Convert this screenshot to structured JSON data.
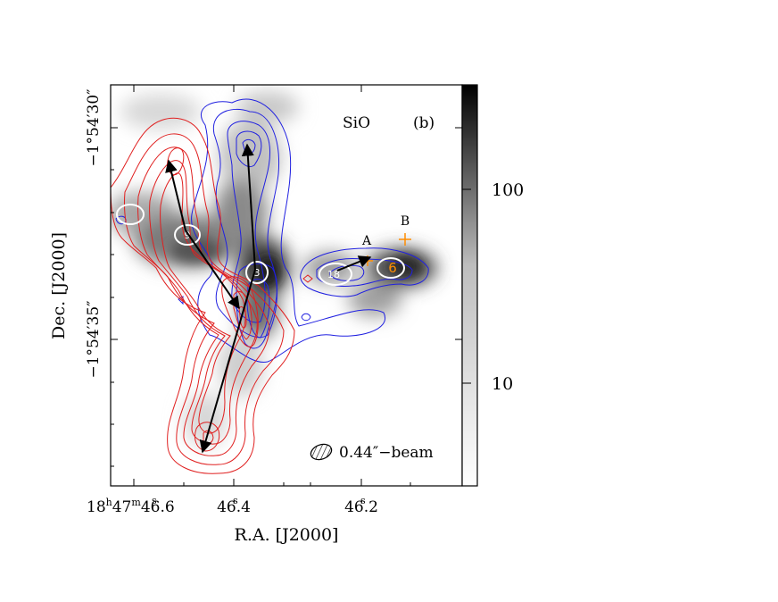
{
  "chart_data": {
    "type": "heatmap",
    "panel_label": "(b)",
    "species_label": "SiO",
    "xlabel": "R.A. [J2000]",
    "ylabel": "Dec. [J2000]",
    "x_ticks": [
      {
        "label_main": "18",
        "sup_h": "h",
        "label_min": "47",
        "sup_m": "m",
        "label_sec": "46.6",
        "sup_s": "s",
        "value": 46.6
      },
      {
        "label_sec": "46.4",
        "sup_s": "s",
        "value": 46.4
      },
      {
        "label_sec": "46.2",
        "sup_s": "s",
        "value": 46.2
      }
    ],
    "y_ticks": [
      {
        "label": "−1°54′30″",
        "value": 30
      },
      {
        "label": "−1°54′35″",
        "value": 35
      }
    ],
    "colorbar": {
      "scale": "log",
      "ticks": [
        {
          "label": "100",
          "value": 100
        },
        {
          "label": "10",
          "value": 10
        }
      ],
      "range": [
        3,
        350
      ],
      "colors": [
        "#ffffff",
        "#000000"
      ]
    },
    "contour_colors": {
      "redshifted": "#e02020",
      "blueshifted": "#2020e0"
    },
    "sources": [
      {
        "id": "9"
      },
      {
        "id": "3"
      },
      {
        "id": "18"
      },
      {
        "id": "6",
        "color": "#ff8c00"
      }
    ],
    "markers": [
      {
        "label": "A",
        "color": "#ff8c00"
      },
      {
        "label": "B",
        "color": "#ff8c00"
      }
    ],
    "beam_label": "0.44″−beam"
  }
}
